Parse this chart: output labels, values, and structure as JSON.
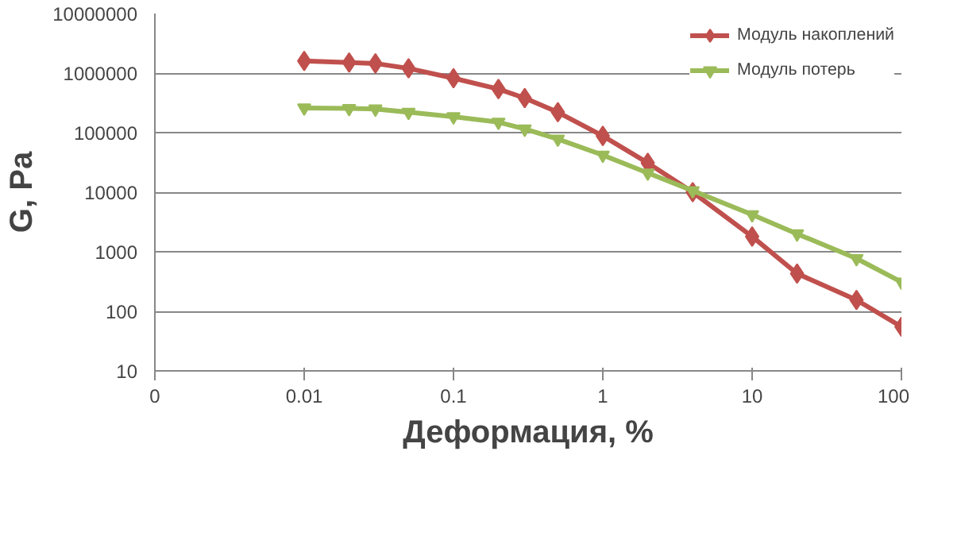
{
  "chart_data": {
    "type": "line",
    "xlabel": "Деформация, %",
    "ylabel": "G, Pa",
    "log": "xy",
    "grid": "y",
    "legend": "top right",
    "line_style": "solid",
    "xlim": [
      0.001,
      100
    ],
    "ylim": [
      10,
      10000000
    ],
    "xticks": [
      {
        "value": 0.001,
        "label": "0"
      },
      0.01,
      0.1,
      1,
      10,
      100
    ],
    "yticks": [
      10,
      100,
      1000,
      10000,
      100000,
      1000000,
      10000000
    ],
    "series": [
      {
        "name": "Модуль накоплений",
        "color": "#c0504d",
        "marker": "diamond",
        "x": [
          0.01,
          0.02,
          0.03,
          0.05,
          0.1,
          0.2,
          0.3,
          0.5,
          1,
          2,
          4,
          10,
          20,
          50,
          100
        ],
        "values": [
          1600000,
          1500000,
          1450000,
          1200000,
          820000,
          540000,
          380000,
          220000,
          88000,
          31000,
          10000,
          1800,
          430,
          155,
          55
        ]
      },
      {
        "name": "Модуль потерь",
        "color": "#9bbb59",
        "marker": "triangle",
        "x": [
          0.01,
          0.02,
          0.03,
          0.05,
          0.1,
          0.2,
          0.3,
          0.5,
          1,
          2,
          4,
          10,
          20,
          50,
          100
        ],
        "values": [
          260000,
          255000,
          250000,
          220000,
          185000,
          150000,
          115000,
          78000,
          42000,
          21000,
          10600,
          4200,
          2000,
          770,
          310
        ]
      }
    ]
  }
}
